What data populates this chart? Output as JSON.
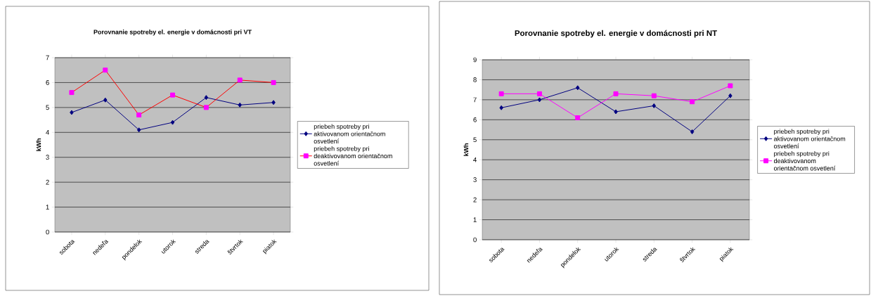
{
  "chart_data": [
    {
      "type": "line",
      "title": "Porovnanie spotreby el. energie v domácnosti pri VT",
      "ylabel": "kWh",
      "categories": [
        "sobota",
        "nedeľa",
        "pondelok",
        "utorok",
        "streda",
        "štvrtok",
        "piatok"
      ],
      "series": [
        {
          "name": "priebeh spotreby pri aktivovanom orientačnom osvetlení",
          "color": "#000080",
          "marker": "diamond",
          "values": [
            4.8,
            5.3,
            4.1,
            4.4,
            5.4,
            5.1,
            5.2
          ]
        },
        {
          "name": "priebeh spotreby pri deaktivovanom orientačnom osvetlení",
          "color": "#ff0000",
          "marker": "square",
          "values": [
            5.6,
            6.5,
            4.7,
            5.5,
            5.0,
            6.1,
            6.0
          ]
        }
      ],
      "ylim": [
        0,
        7
      ],
      "yticks": [
        0,
        1,
        2,
        3,
        4,
        5,
        6,
        7
      ],
      "grid": "y",
      "legend": "right"
    },
    {
      "type": "line",
      "title": "Porovnanie spotreby el. energie v domácnosti pri NT",
      "ylabel": "kWh",
      "categories": [
        "sobota",
        "nedeľa",
        "pondelok",
        "utorok",
        "streda",
        "štvrtok",
        "piatok"
      ],
      "series": [
        {
          "name": "priebeh spotreby pri aktivovanom orientačnom osvetlení",
          "color": "#000080",
          "marker": "diamond",
          "values": [
            6.6,
            7.0,
            7.6,
            6.4,
            6.7,
            5.4,
            7.2
          ]
        },
        {
          "name": "priebeh spotreby pri deaktivovanom orientačnom osvetlení",
          "color": "#ff00ff",
          "marker": "square",
          "values": [
            7.3,
            7.3,
            6.1,
            7.3,
            7.2,
            6.9,
            7.7
          ]
        }
      ],
      "ylim": [
        0,
        9
      ],
      "yticks": [
        0,
        1,
        2,
        3,
        4,
        5,
        6,
        7,
        8,
        9
      ],
      "grid": "y",
      "legend": "right"
    }
  ]
}
